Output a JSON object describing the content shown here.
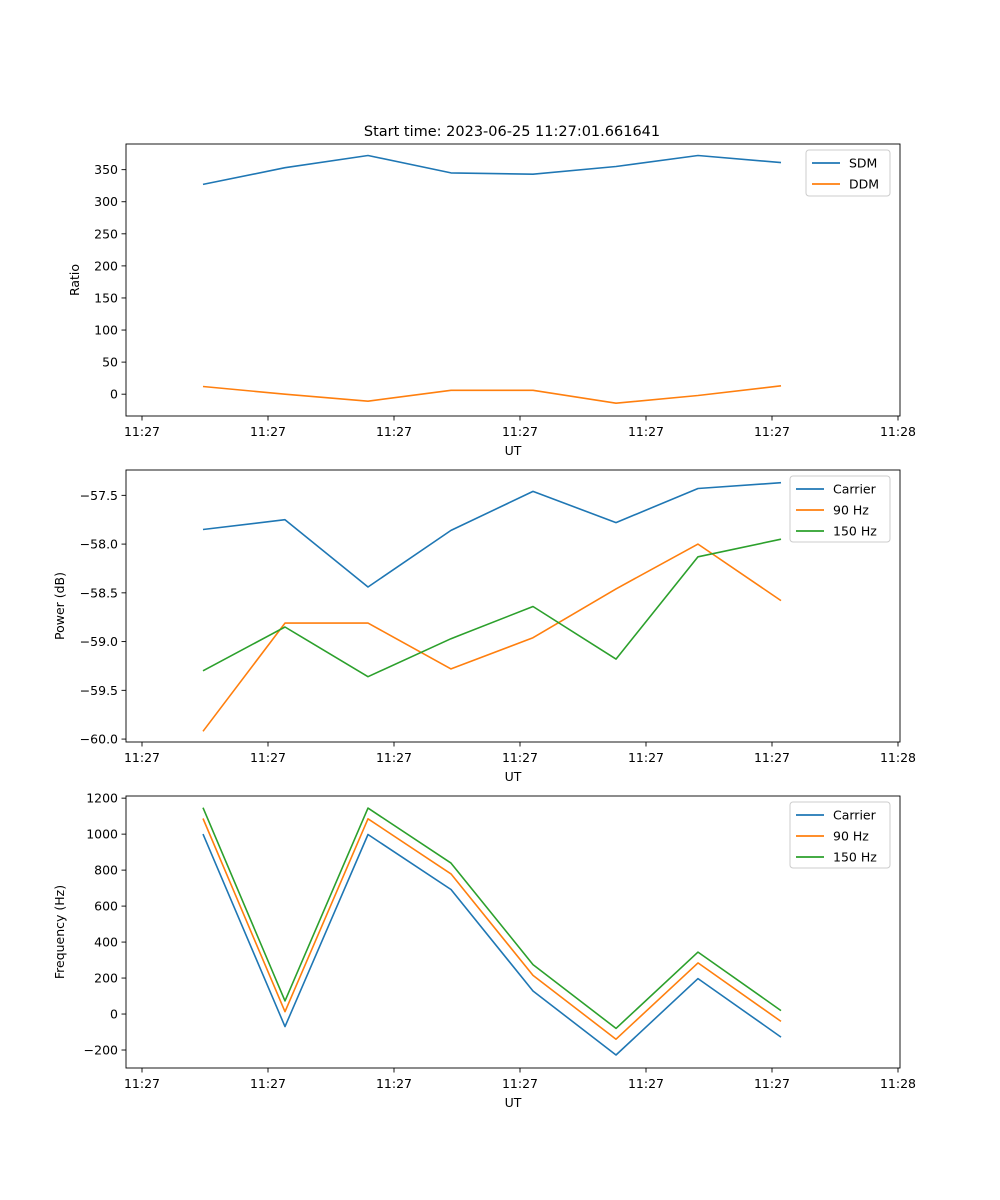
{
  "figure": {
    "title": "Start time: 2023-06-25 11:27:01.661641",
    "colors": {
      "blue": "#1f77b4",
      "orange": "#ff7f0e",
      "green": "#2ca02c"
    }
  },
  "chart_data": [
    {
      "type": "line",
      "title": "Start time: 2023-06-25 11:27:01.661641",
      "xlabel": "UT",
      "ylabel": "Ratio",
      "x_tick_labels": [
        "11:27",
        "11:27",
        "11:27",
        "11:27",
        "11:27",
        "11:27",
        "11:28"
      ],
      "y_ticks": [
        0,
        50,
        100,
        150,
        200,
        250,
        300,
        350
      ],
      "ylim": [
        -34,
        390
      ],
      "legend": "top-right",
      "grid": false,
      "series": [
        {
          "name": "SDM",
          "color": "#1f77b4",
          "values": [
            327,
            353,
            372,
            345,
            343,
            355,
            372,
            361
          ]
        },
        {
          "name": "DDM",
          "color": "#ff7f0e",
          "values": [
            12,
            0,
            -11,
            6,
            6,
            -14,
            -2,
            13
          ]
        }
      ]
    },
    {
      "type": "line",
      "xlabel": "UT",
      "ylabel": "Power (dB)",
      "x_tick_labels": [
        "11:27",
        "11:27",
        "11:27",
        "11:27",
        "11:27",
        "11:27",
        "11:28"
      ],
      "y_ticks": [
        -60.0,
        -59.5,
        -59.0,
        -58.5,
        -58.0,
        -57.5
      ],
      "y_tick_labels": [
        "−60.0",
        "−59.5",
        "−59.0",
        "−58.5",
        "−58.0",
        "−57.5"
      ],
      "ylim": [
        -60.03,
        -57.24
      ],
      "legend": "top-right",
      "grid": false,
      "series": [
        {
          "name": "Carrier",
          "color": "#1f77b4",
          "values": [
            -57.85,
            -57.75,
            -58.44,
            -57.86,
            -57.46,
            -57.78,
            -57.43,
            -57.37
          ]
        },
        {
          "name": "90 Hz",
          "color": "#ff7f0e",
          "values": [
            -59.92,
            -58.81,
            -58.81,
            -59.28,
            -58.96,
            -58.46,
            -58.0,
            -58.58
          ]
        },
        {
          "name": "150 Hz",
          "color": "#2ca02c",
          "values": [
            -59.3,
            -58.85,
            -59.36,
            -58.97,
            -58.64,
            -59.18,
            -58.13,
            -57.95
          ]
        }
      ]
    },
    {
      "type": "line",
      "xlabel": "UT",
      "ylabel": "Frequency (Hz)",
      "x_tick_labels": [
        "11:27",
        "11:27",
        "11:27",
        "11:27",
        "11:27",
        "11:27",
        "11:28"
      ],
      "y_ticks": [
        -200,
        0,
        200,
        400,
        600,
        800,
        1000,
        1200
      ],
      "y_tick_labels": [
        "−200",
        "0",
        "200",
        "400",
        "600",
        "800",
        "1000",
        "1200"
      ],
      "ylim": [
        -300,
        1212
      ],
      "legend": "top-right",
      "grid": false,
      "series": [
        {
          "name": "Carrier",
          "color": "#1f77b4",
          "values": [
            1000,
            -70,
            998,
            692,
            128,
            -228,
            197,
            -128
          ]
        },
        {
          "name": "90 Hz",
          "color": "#ff7f0e",
          "values": [
            1087,
            13,
            1085,
            779,
            215,
            -140,
            284,
            -41
          ]
        },
        {
          "name": "150 Hz",
          "color": "#2ca02c",
          "values": [
            1147,
            73,
            1145,
            839,
            275,
            -80,
            344,
            19
          ]
        }
      ]
    }
  ]
}
